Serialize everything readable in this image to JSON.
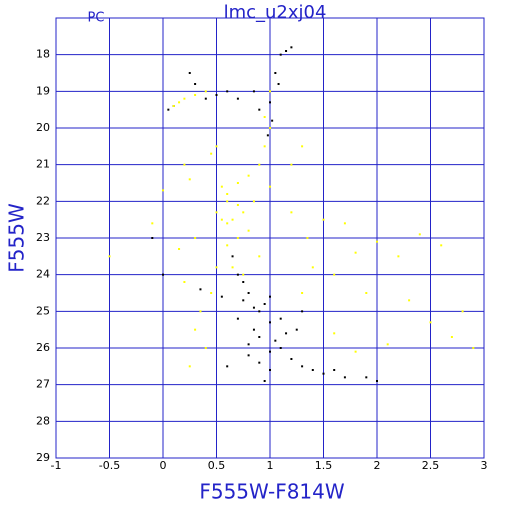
{
  "chart_data": {
    "type": "scatter",
    "title": "lmc_u2xj04",
    "corner_label": "PC",
    "x_label": "F555W-F814W",
    "y_label": "F555W",
    "xlim": [
      -1,
      3
    ],
    "ylim": [
      29,
      17
    ],
    "xticks": [
      -1,
      -0.5,
      0,
      0.5,
      1,
      1.5,
      2,
      2.5,
      3
    ],
    "yticks": [
      18,
      19,
      20,
      21,
      22,
      23,
      24,
      25,
      26,
      27,
      28,
      29
    ],
    "grid": true,
    "series": [
      {
        "color": "#000000",
        "x": [
          0.8,
          0.9,
          1.0,
          0.85,
          1.1,
          0.95,
          1.05,
          1.2,
          0.75,
          0.7,
          1.3,
          1.5,
          1.6,
          1.7,
          1.4,
          1.0,
          0.9,
          0.8,
          0.7,
          0.65,
          1.05,
          1.1,
          1.08,
          1.0,
          1.02,
          0.98,
          1.15,
          1.2,
          0.25,
          0.3,
          0.6,
          0.7,
          0.5,
          0.1,
          0.05,
          0.4,
          0.85,
          0.9,
          -0.1,
          0.0,
          0.35,
          0.55,
          1.3,
          1.9,
          2.0,
          0.6,
          1.25,
          0.95,
          0.85,
          1.0,
          1.1,
          0.9,
          0.75,
          1.15,
          0.8,
          1.0
        ],
        "values": [
          24.5,
          25.0,
          25.3,
          25.5,
          26.0,
          24.8,
          25.8,
          26.3,
          24.2,
          24.0,
          26.5,
          26.7,
          26.6,
          26.8,
          26.6,
          26.1,
          26.4,
          25.9,
          25.2,
          23.5,
          18.5,
          18.0,
          18.8,
          19.3,
          19.8,
          20.2,
          17.9,
          17.8,
          18.5,
          18.8,
          19.0,
          19.2,
          19.1,
          19.4,
          19.5,
          19.2,
          19.0,
          19.5,
          23.0,
          24.0,
          24.4,
          24.6,
          25.0,
          26.8,
          26.9,
          26.5,
          25.5,
          26.9,
          24.9,
          24.6,
          25.2,
          25.7,
          24.7,
          25.6,
          26.2,
          26.6
        ]
      },
      {
        "color": "#ffff00",
        "x": [
          0.6,
          0.65,
          0.7,
          0.6,
          0.7,
          0.8,
          0.9,
          0.95,
          1.0,
          0.55,
          0.6,
          0.65,
          0.75,
          0.8,
          0.5,
          0.7,
          0.6,
          0.85,
          0.55,
          0.9,
          0.75,
          0.5,
          0.45,
          0.35,
          0.3,
          0.2,
          0.15,
          0.3,
          0.25,
          0.2,
          0.1,
          0.2,
          0.3,
          0.4,
          0.15,
          0.45,
          0.5,
          1.0,
          1.2,
          1.5,
          1.7,
          1.8,
          2.0,
          2.2,
          2.3,
          2.5,
          2.7,
          2.8,
          2.4,
          2.6,
          1.9,
          1.6,
          1.4,
          1.3,
          1.6,
          1.8,
          2.1,
          -0.5,
          -0.1,
          0.0,
          1.0,
          0.95,
          0.25,
          0.4,
          1.2,
          1.3,
          1.35,
          2.9
        ],
        "values": [
          22.0,
          22.5,
          23.0,
          21.8,
          21.5,
          21.3,
          21.0,
          20.5,
          20.0,
          22.5,
          23.2,
          23.8,
          22.3,
          22.8,
          22.3,
          22.1,
          22.6,
          22.0,
          21.6,
          23.5,
          24.0,
          23.8,
          24.5,
          25.0,
          25.5,
          24.2,
          23.3,
          23.0,
          21.4,
          21.0,
          19.4,
          19.2,
          19.1,
          19.0,
          19.3,
          20.7,
          20.5,
          21.6,
          22.3,
          22.5,
          22.6,
          23.4,
          23.1,
          23.5,
          24.7,
          25.3,
          25.7,
          25.0,
          22.9,
          23.2,
          24.5,
          24.0,
          23.8,
          24.5,
          25.6,
          26.1,
          25.9,
          23.5,
          22.6,
          21.7,
          19.0,
          19.7,
          26.5,
          26.0,
          21.0,
          20.5,
          23.0,
          26.0
        ]
      }
    ]
  }
}
